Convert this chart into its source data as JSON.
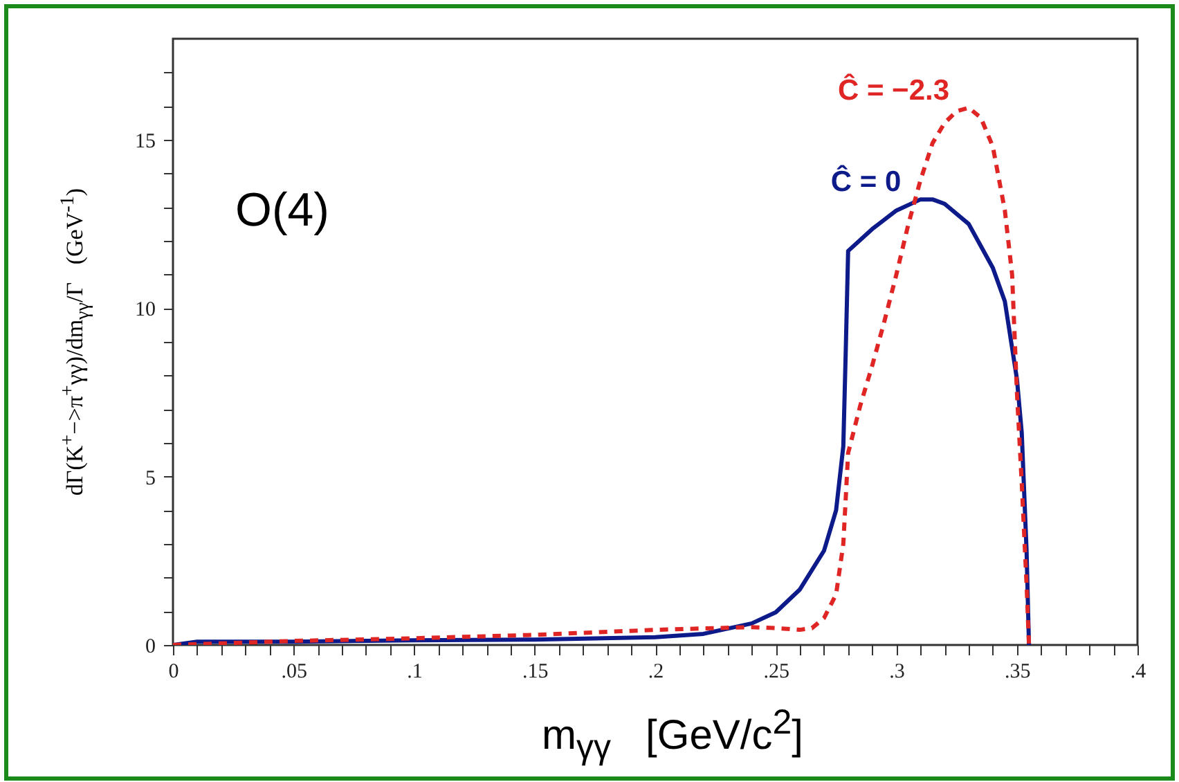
{
  "chart_data": {
    "type": "line",
    "xlabel": "m$_{γγ}$   [GeV/c$^{2}$]",
    "ylabel": "dΓ(K$^{+}$−>π$^{+}$γγ)/dm$_{γγ}$/Γ   (GeV$^{-1}$)",
    "annotations": [
      "O(4)"
    ],
    "xlim": [
      0,
      0.4
    ],
    "ylim": [
      0,
      18
    ],
    "xticks": [
      0,
      {
        "value": 0.01,
        "label": null
      },
      {
        "value": 0.02,
        "label": null
      },
      {
        "value": 0.03,
        "label": null
      },
      {
        "value": 0.04,
        "label": null
      },
      {
        "value": 0.05,
        "label": ".05"
      },
      {
        "value": 0.06,
        "label": null
      },
      {
        "value": 0.07,
        "label": null
      },
      {
        "value": 0.08,
        "label": null
      },
      {
        "value": 0.09,
        "label": null
      },
      {
        "value": 0.1,
        "label": ".1"
      },
      {
        "value": 0.11,
        "label": null
      },
      {
        "value": 0.12,
        "label": null
      },
      {
        "value": 0.13,
        "label": null
      },
      {
        "value": 0.14,
        "label": null
      },
      {
        "value": 0.15,
        "label": ".15"
      },
      {
        "value": 0.16,
        "label": null
      },
      {
        "value": 0.17,
        "label": null
      },
      {
        "value": 0.18,
        "label": null
      },
      {
        "value": 0.19,
        "label": null
      },
      {
        "value": 0.2,
        "label": ".2"
      },
      {
        "value": 0.21,
        "label": null
      },
      {
        "value": 0.22,
        "label": null
      },
      {
        "value": 0.23,
        "label": null
      },
      {
        "value": 0.24,
        "label": null
      },
      {
        "value": 0.25,
        "label": ".25"
      },
      {
        "value": 0.26,
        "label": null
      },
      {
        "value": 0.27,
        "label": null
      },
      {
        "value": 0.28,
        "label": null
      },
      {
        "value": 0.29,
        "label": null
      },
      {
        "value": 0.3,
        "label": ".3"
      },
      {
        "value": 0.31,
        "label": null
      },
      {
        "value": 0.32,
        "label": null
      },
      {
        "value": 0.33,
        "label": null
      },
      {
        "value": 0.34,
        "label": null
      },
      {
        "value": 0.35,
        "label": ".35"
      },
      {
        "value": 0.36,
        "label": null
      },
      {
        "value": 0.37,
        "label": null
      },
      {
        "value": 0.38,
        "label": null
      },
      {
        "value": 0.39,
        "label": null
      },
      {
        "value": 0.4,
        "label": ".4"
      }
    ],
    "yticks": [
      0,
      {
        "value": 1,
        "label": null
      },
      {
        "value": 2,
        "label": null
      },
      {
        "value": 3,
        "label": null
      },
      {
        "value": 4,
        "label": null
      },
      5,
      {
        "value": 6,
        "label": null
      },
      {
        "value": 7,
        "label": null
      },
      {
        "value": 8,
        "label": null
      },
      {
        "value": 9,
        "label": null
      },
      10,
      {
        "value": 11,
        "label": null
      },
      {
        "value": 12,
        "label": null
      },
      {
        "value": 13,
        "label": null
      },
      {
        "value": 14,
        "label": null
      },
      15,
      {
        "value": 16,
        "label": null
      },
      {
        "value": 17,
        "label": null
      }
    ],
    "grid": false,
    "series": [
      {
        "name": "Ĉ = 0",
        "color": "#0d1a8a",
        "line_style": "solid",
        "x": [
          0,
          0.01,
          0.05,
          0.1,
          0.15,
          0.2,
          0.22,
          0.24,
          0.25,
          0.26,
          0.27,
          0.275,
          0.278,
          0.279,
          0.28,
          0.29,
          0.3,
          0.31,
          0.315,
          0.32,
          0.33,
          0.34,
          0.345,
          0.35,
          0.352,
          0.354,
          0.355
        ],
        "values": [
          0,
          0.1,
          0.1,
          0.14,
          0.16,
          0.23,
          0.33,
          0.64,
          0.97,
          1.65,
          2.8,
          4.0,
          5.9,
          8.7,
          11.7,
          12.35,
          12.9,
          13.23,
          13.23,
          13.1,
          12.5,
          11.2,
          10.2,
          7.9,
          6.3,
          2.8,
          0
        ]
      },
      {
        "name": "Ĉ = −2.3",
        "color": "#e02525",
        "line_style": "dashed",
        "x": [
          0,
          0.05,
          0.1,
          0.15,
          0.2,
          0.24,
          0.25,
          0.26,
          0.265,
          0.27,
          0.275,
          0.278,
          0.28,
          0.285,
          0.29,
          0.295,
          0.3,
          0.305,
          0.31,
          0.315,
          0.32,
          0.325,
          0.33,
          0.335,
          0.34,
          0.345,
          0.348,
          0.35,
          0.352,
          0.354,
          0.355
        ],
        "values": [
          0,
          0.12,
          0.2,
          0.3,
          0.45,
          0.53,
          0.5,
          0.45,
          0.5,
          0.8,
          1.5,
          3.0,
          5.7,
          7.1,
          8.3,
          9.6,
          11.0,
          12.5,
          13.8,
          14.9,
          15.5,
          15.85,
          15.95,
          15.66,
          14.8,
          12.9,
          11.0,
          7.5,
          4.8,
          1.8,
          0
        ]
      }
    ]
  }
}
